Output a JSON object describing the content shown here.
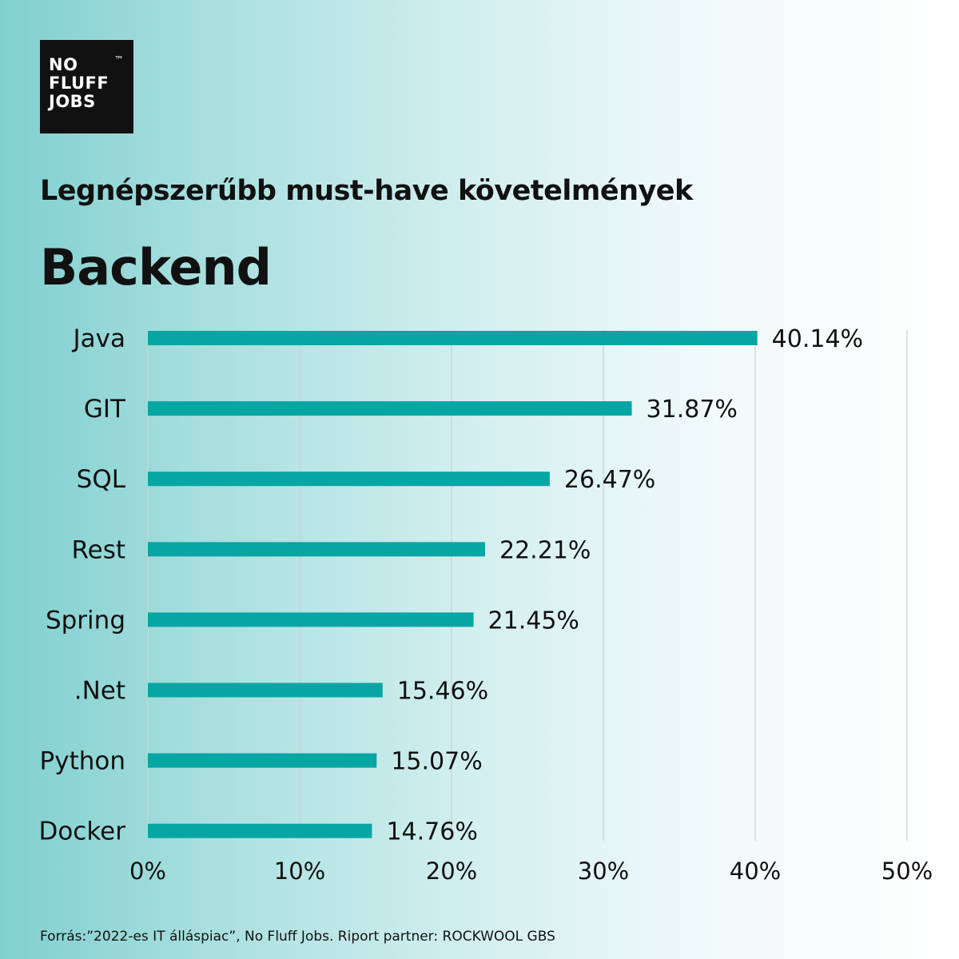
{
  "logo": {
    "lines": [
      "NO",
      "FLUFF",
      "JOBS"
    ],
    "tm": "™"
  },
  "header": {
    "subtitle": "Legnépszerűbb must-have követelmények"
  },
  "footer": {
    "source": "Forrás:”2022-es IT álláspiac”, No Fluff Jobs. Riport partner: ROCKWOOL GBS"
  },
  "colors": {
    "bar": "#07a6a4",
    "grid": "#c9d2d2"
  },
  "chart_data": {
    "type": "bar",
    "orientation": "horizontal",
    "title": "Backend",
    "categories": [
      "Java",
      "GIT",
      "SQL",
      "Rest",
      "Spring",
      ".Net",
      "Python",
      "Docker"
    ],
    "values": [
      40.14,
      31.87,
      26.47,
      22.21,
      21.45,
      15.46,
      15.07,
      14.76
    ],
    "data_labels": [
      "40.14%",
      "31.87%",
      "26.47%",
      "22.21%",
      "21.45%",
      "15.46%",
      "15.07%",
      "14.76%"
    ],
    "xlim": [
      0,
      50
    ],
    "x_ticks": [
      0,
      10,
      20,
      30,
      40,
      50
    ],
    "x_tick_labels": [
      "0%",
      "10%",
      "20%",
      "30%",
      "40%",
      "50%"
    ],
    "grid": true
  }
}
